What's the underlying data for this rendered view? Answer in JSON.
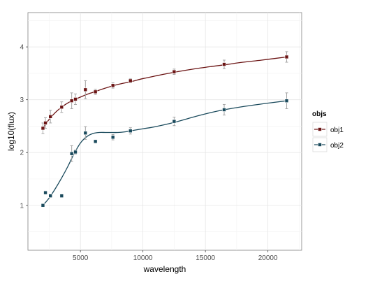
{
  "chart_data": {
    "type": "scatter",
    "xlabel": "wavelength",
    "ylabel": "log10(flux)",
    "xlim": [
      800,
      22700
    ],
    "ylim": [
      0.15,
      4.65
    ],
    "x_ticks": [
      5000,
      10000,
      15000,
      20000
    ],
    "x_tick_labels": [
      "5000",
      "10000",
      "15000",
      "20000"
    ],
    "y_ticks": [
      1,
      2,
      3,
      4
    ],
    "y_tick_labels": [
      "1",
      "2",
      "3",
      "4"
    ],
    "grid": true,
    "legend": {
      "title": "objs",
      "placement": "right"
    },
    "series": [
      {
        "name": "obj1",
        "color": "#6b1414",
        "points": [
          {
            "x": 2000,
            "y": 2.46,
            "err": 0.1
          },
          {
            "x": 2200,
            "y": 2.56,
            "err": 0.1
          },
          {
            "x": 2600,
            "y": 2.68,
            "err": 0.12
          },
          {
            "x": 3500,
            "y": 2.86,
            "err": 0.1
          },
          {
            "x": 4300,
            "y": 2.98,
            "err": 0.15
          },
          {
            "x": 4600,
            "y": 3.01,
            "err": 0.1
          },
          {
            "x": 5400,
            "y": 3.19,
            "err": 0.17
          },
          {
            "x": 6200,
            "y": 3.15,
            "err": 0.05
          },
          {
            "x": 7600,
            "y": 3.27,
            "err": 0.05
          },
          {
            "x": 9000,
            "y": 3.36,
            "err": 0.04
          },
          {
            "x": 12500,
            "y": 3.53,
            "err": 0.05
          },
          {
            "x": 16500,
            "y": 3.67,
            "err": 0.08
          },
          {
            "x": 21500,
            "y": 3.81,
            "err": 0.1
          }
        ],
        "curve": [
          [
            2000,
            2.46
          ],
          [
            2500,
            2.63
          ],
          [
            3000,
            2.76
          ],
          [
            3500,
            2.86
          ],
          [
            4000,
            2.94
          ],
          [
            4500,
            3.0
          ],
          [
            5000,
            3.05
          ],
          [
            5500,
            3.1
          ],
          [
            6000,
            3.14
          ],
          [
            7000,
            3.22
          ],
          [
            8000,
            3.29
          ],
          [
            9000,
            3.34
          ],
          [
            10000,
            3.4
          ],
          [
            11000,
            3.45
          ],
          [
            12500,
            3.52
          ],
          [
            14000,
            3.58
          ],
          [
            15500,
            3.63
          ],
          [
            16500,
            3.66
          ],
          [
            18000,
            3.71
          ],
          [
            19500,
            3.75
          ],
          [
            21500,
            3.81
          ]
        ]
      },
      {
        "name": "obj2",
        "color": "#1a4a5c",
        "points": [
          {
            "x": 2000,
            "y": 1.0,
            "err": 0.03
          },
          {
            "x": 2200,
            "y": 1.24,
            "err": 0.03
          },
          {
            "x": 2600,
            "y": 1.18,
            "err": 0.03
          },
          {
            "x": 3500,
            "y": 1.18,
            "err": 0.03
          },
          {
            "x": 4300,
            "y": 1.98,
            "err": 0.15
          },
          {
            "x": 4600,
            "y": 2.01,
            "err": 0.04
          },
          {
            "x": 5400,
            "y": 2.37,
            "err": 0.12
          },
          {
            "x": 6200,
            "y": 2.21,
            "err": 0.03
          },
          {
            "x": 7600,
            "y": 2.29,
            "err": 0.05
          },
          {
            "x": 9000,
            "y": 2.41,
            "err": 0.06
          },
          {
            "x": 12500,
            "y": 2.59,
            "err": 0.08
          },
          {
            "x": 16500,
            "y": 2.81,
            "err": 0.1
          },
          {
            "x": 21500,
            "y": 2.98,
            "err": 0.15
          }
        ],
        "curve": [
          [
            2000,
            1.0
          ],
          [
            2500,
            1.14
          ],
          [
            3000,
            1.32
          ],
          [
            3500,
            1.52
          ],
          [
            4000,
            1.74
          ],
          [
            4500,
            1.98
          ],
          [
            5000,
            2.18
          ],
          [
            5500,
            2.3
          ],
          [
            6000,
            2.36
          ],
          [
            6500,
            2.38
          ],
          [
            7000,
            2.38
          ],
          [
            7500,
            2.38
          ],
          [
            8000,
            2.38
          ],
          [
            8500,
            2.39
          ],
          [
            9000,
            2.41
          ],
          [
            10000,
            2.45
          ],
          [
            11000,
            2.49
          ],
          [
            12500,
            2.57
          ],
          [
            14000,
            2.67
          ],
          [
            15500,
            2.76
          ],
          [
            16500,
            2.81
          ],
          [
            18000,
            2.87
          ],
          [
            19500,
            2.92
          ],
          [
            21500,
            2.98
          ]
        ]
      }
    ]
  }
}
